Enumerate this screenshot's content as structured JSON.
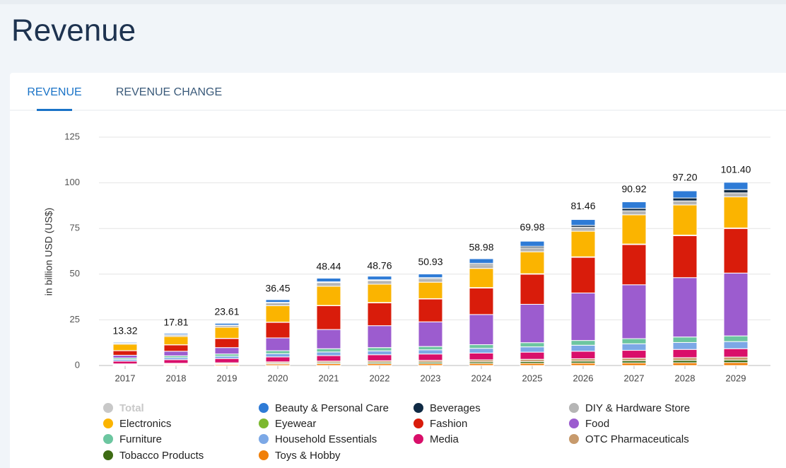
{
  "page": {
    "title": "Revenue",
    "tabs": [
      "REVENUE",
      "REVENUE CHANGE"
    ]
  },
  "chart_data": {
    "type": "stacked_bar",
    "ylabel": "in billion USD (US$)",
    "categories": [
      "2017",
      "2018",
      "2019",
      "2020",
      "2021",
      "2022",
      "2023",
      "2024",
      "2025",
      "2026",
      "2027",
      "2028",
      "2029"
    ],
    "ylim": [
      0,
      125
    ],
    "yticks": [
      0,
      25,
      50,
      75,
      100,
      125
    ],
    "grid": true,
    "series": [
      {
        "name": "Total",
        "color": "#c8c8c8",
        "disabled": true,
        "values": [
          13.32,
          17.81,
          23.61,
          36.45,
          48.44,
          48.76,
          50.93,
          58.98,
          69.98,
          81.46,
          90.92,
          97.2,
          101.4
        ],
        "value_labels": [
          "13.32",
          "17.81",
          "23.61",
          "36.45",
          "48.44",
          "48.76",
          "50.93",
          "58.98",
          "69.98",
          "81.46",
          "90.92",
          "97.20",
          "101.40"
        ]
      },
      {
        "name": "Beauty & Personal Care",
        "color": "#2e7bd6",
        "values": [
          0.5,
          0.7,
          1,
          1.5,
          2,
          2,
          2,
          2.5,
          2.8,
          3.2,
          3.6,
          3.9,
          4
        ]
      },
      {
        "name": "Beverages",
        "color": "#0f2a44",
        "values": [
          0.1,
          0.15,
          0.2,
          0.3,
          0.4,
          0.4,
          0.5,
          0.6,
          0.8,
          1,
          1.3,
          1.6,
          1.8
        ]
      },
      {
        "name": "DIY & Hardware Store",
        "color": "#b5b5b5",
        "values": [
          0.6,
          0.8,
          1,
          1.5,
          2,
          2,
          2,
          2.2,
          2.2,
          2.2,
          2.2,
          2.2,
          2.2
        ]
      },
      {
        "name": "Electronics",
        "color": "#fbb400",
        "values": [
          3.5,
          4.5,
          6,
          9,
          10.5,
          10,
          9,
          10.5,
          12,
          14,
          16,
          16.5,
          17
        ]
      },
      {
        "name": "Eyewear",
        "color": "#7cb82f",
        "values": [
          0.05,
          0.07,
          0.1,
          0.15,
          0.2,
          0.2,
          0.2,
          0.25,
          0.25,
          0.3,
          0.3,
          0.3,
          0.3
        ]
      },
      {
        "name": "Fashion",
        "color": "#d91c0b",
        "values": [
          2.5,
          3.5,
          5,
          8.5,
          13,
          12.5,
          12.5,
          14.5,
          16.5,
          19.5,
          22,
          23,
          24.4
        ]
      },
      {
        "name": "Food",
        "color": "#9c5ccf",
        "values": [
          1.5,
          2.5,
          3.5,
          7,
          10.5,
          12,
          13.5,
          16.5,
          21,
          26,
          29.5,
          32.5,
          34.4
        ]
      },
      {
        "name": "Furniture",
        "color": "#6cc6a0",
        "values": [
          0.8,
          1,
          1.2,
          1.6,
          1.8,
          1.8,
          1.8,
          2,
          2.3,
          2.6,
          2.8,
          3,
          3.1
        ]
      },
      {
        "name": "Household Essentials",
        "color": "#7ca8e6",
        "values": [
          0.9,
          1.1,
          1.3,
          1.8,
          2,
          2.1,
          2.3,
          2.6,
          2.9,
          3.3,
          3.6,
          3.8,
          3.9
        ]
      },
      {
        "name": "Media",
        "color": "#d90f6a",
        "values": [
          1.5,
          2,
          2.3,
          2.7,
          3,
          3.3,
          3.5,
          3.7,
          3.9,
          4.1,
          4.3,
          4.5,
          4.6
        ]
      },
      {
        "name": "OTC Pharmaceuticals",
        "color": "#c79a6c",
        "values": [
          0.3,
          0.4,
          0.5,
          0.7,
          0.8,
          0.9,
          1,
          1.1,
          1.2,
          1.3,
          1.4,
          1.5,
          1.6
        ]
      },
      {
        "name": "Tobacco Products",
        "color": "#3d6b13",
        "values": [
          0.2,
          0.3,
          0.4,
          0.5,
          0.6,
          0.7,
          0.8,
          0.9,
          1,
          1.1,
          1.2,
          1.3,
          1.4
        ]
      },
      {
        "name": "Toys & Hobby",
        "color": "#f07f09",
        "values": [
          0.4,
          0.5,
          0.6,
          0.8,
          1,
          1,
          1,
          1.1,
          1.2,
          1.3,
          1.4,
          1.5,
          1.6
        ]
      }
    ]
  }
}
